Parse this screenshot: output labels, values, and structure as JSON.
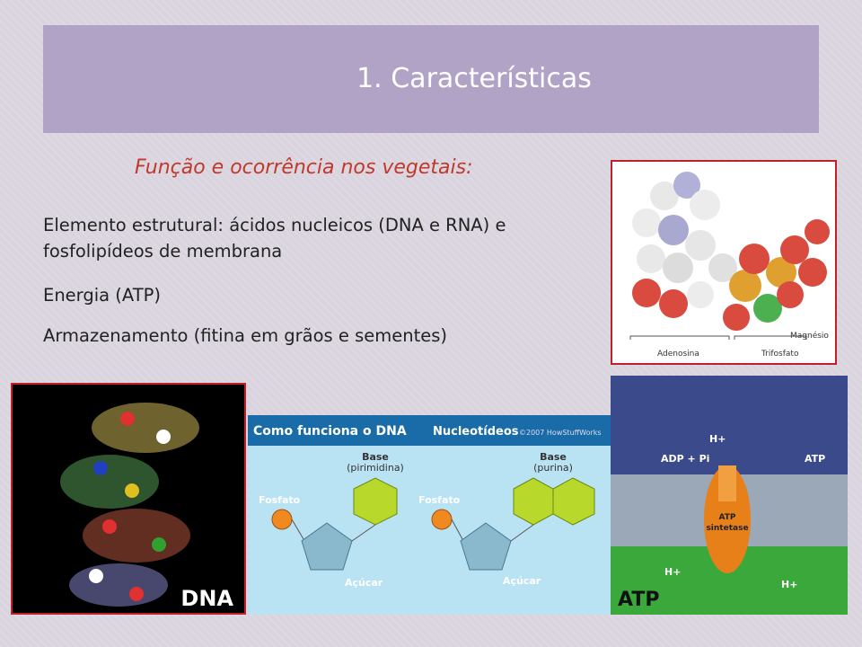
{
  "slide": {
    "title": "1. Características",
    "subtitle": "Função e ocorrência nos vegetais:",
    "bullets": [
      "Elemento estrutural: ácidos nucleicos (DNA e RNA) e fosfolipídeos de membrana",
      "Energia (ATP)",
      "Armazenamento (fitina em grãos e sementes)"
    ],
    "images": {
      "atp_molecule": {
        "labels": [
          "Magnésio",
          "Adenosina",
          "Trifosfato"
        ]
      },
      "dna_model": {
        "label": "DNA"
      },
      "dna_diagram": {
        "title": "Como funciona o DNA",
        "subtitle": "Nucleotídeos",
        "credit": "©2007 HowStuffWorks",
        "left": {
          "base": "Base",
          "base_type": "(pirimidina)",
          "phosphate": "Fosfato",
          "sugar": "Açúcar"
        },
        "right": {
          "base": "Base",
          "base_type": "(purina)",
          "phosphate": "Fosfato",
          "sugar": "Açúcar"
        }
      },
      "atp_synthase": {
        "adp": "ADP + Pi",
        "atp_small": "ATP",
        "proton": "H+",
        "enzyme_line1": "ATP",
        "enzyme_line2": "sintetase",
        "label": "ATP"
      }
    }
  }
}
